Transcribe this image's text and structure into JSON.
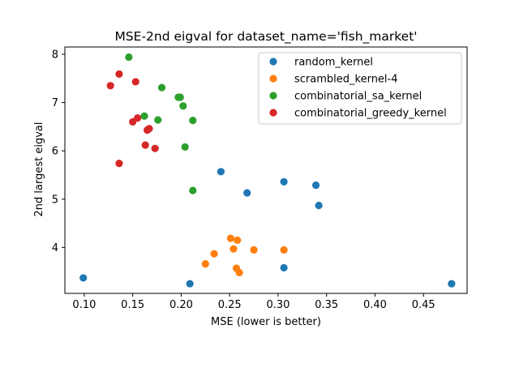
{
  "chart_data": {
    "type": "scatter",
    "title": "MSE-2nd eigval for dataset_name='fish_market'",
    "xlabel": "MSE (lower is better)",
    "ylabel": "2nd largest eigval",
    "xlim": [
      0.08,
      0.495
    ],
    "ylim": [
      3.05,
      8.15
    ],
    "xticks": [
      0.1,
      0.15,
      0.2,
      0.25,
      0.3,
      0.35,
      0.4,
      0.45
    ],
    "xtick_labels": [
      "0.10",
      "0.15",
      "0.20",
      "0.25",
      "0.30",
      "0.35",
      "0.40",
      "0.45"
    ],
    "yticks": [
      4,
      5,
      6,
      7,
      8
    ],
    "ytick_labels": [
      "4",
      "5",
      "6",
      "7",
      "8"
    ],
    "grid": false,
    "legend_position": "top-right",
    "series": [
      {
        "name": "random_kernel",
        "color": "#1f77b4",
        "points": [
          [
            0.099,
            3.37
          ],
          [
            0.209,
            3.25
          ],
          [
            0.241,
            5.57
          ],
          [
            0.268,
            5.13
          ],
          [
            0.306,
            5.36
          ],
          [
            0.306,
            3.58
          ],
          [
            0.339,
            5.29
          ],
          [
            0.342,
            4.87
          ],
          [
            0.479,
            3.25
          ]
        ]
      },
      {
        "name": "scrambled_kernel-4",
        "color": "#ff7f0e",
        "points": [
          [
            0.225,
            3.66
          ],
          [
            0.234,
            3.87
          ],
          [
            0.251,
            4.19
          ],
          [
            0.254,
            3.97
          ],
          [
            0.258,
            4.15
          ],
          [
            0.257,
            3.57
          ],
          [
            0.26,
            3.48
          ],
          [
            0.275,
            3.95
          ],
          [
            0.306,
            3.95
          ]
        ]
      },
      {
        "name": "combinatorial_sa_kernel",
        "color": "#2ca02c",
        "points": [
          [
            0.146,
            7.94
          ],
          [
            0.162,
            6.72
          ],
          [
            0.176,
            6.64
          ],
          [
            0.18,
            7.31
          ],
          [
            0.197,
            7.11
          ],
          [
            0.199,
            7.11
          ],
          [
            0.202,
            6.93
          ],
          [
            0.204,
            6.08
          ],
          [
            0.212,
            6.63
          ],
          [
            0.212,
            5.18
          ]
        ]
      },
      {
        "name": "combinatorial_greedy_kernel",
        "color": "#d62728",
        "points": [
          [
            0.127,
            7.35
          ],
          [
            0.136,
            7.59
          ],
          [
            0.136,
            5.74
          ],
          [
            0.15,
            6.6
          ],
          [
            0.153,
            7.43
          ],
          [
            0.155,
            6.68
          ],
          [
            0.163,
            6.12
          ],
          [
            0.165,
            6.43
          ],
          [
            0.167,
            6.46
          ],
          [
            0.173,
            6.05
          ]
        ]
      }
    ]
  }
}
